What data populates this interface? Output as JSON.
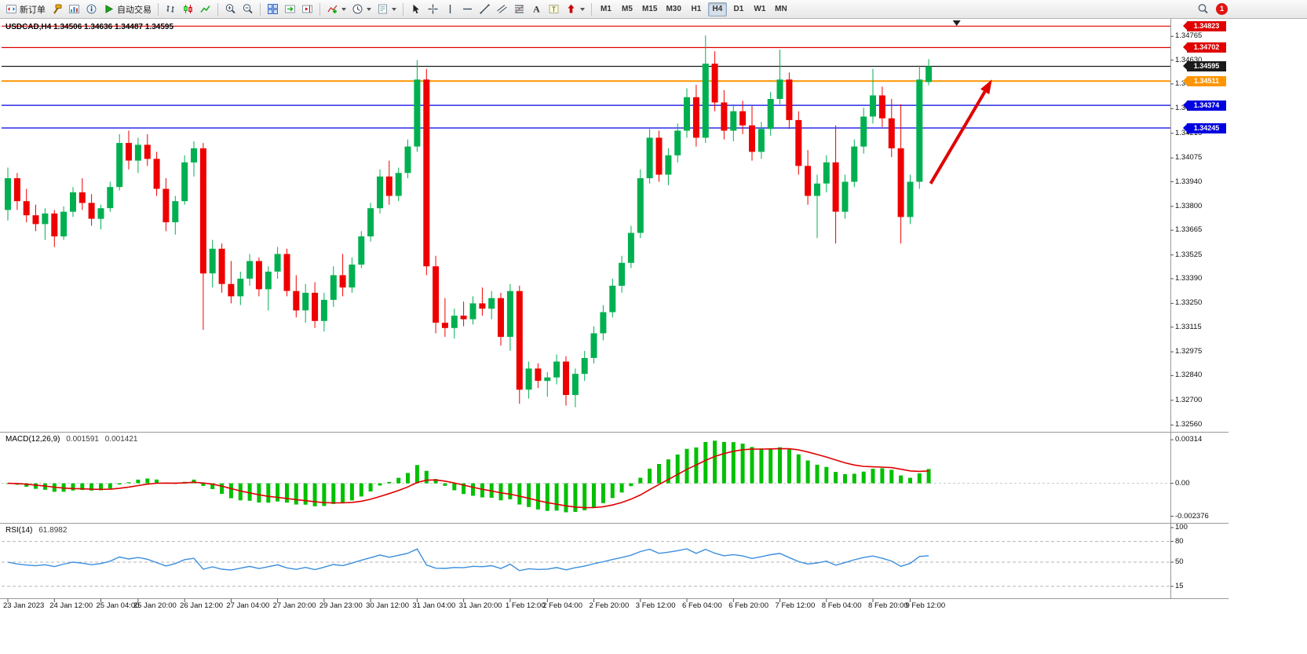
{
  "app": {
    "toolbar": {
      "groups": [
        {
          "items": [
            {
              "name": "new-order",
              "icon": "new-order",
              "label": "新订单"
            },
            {
              "name": "mql-editor",
              "icon": "hammer"
            },
            {
              "name": "market-watch",
              "icon": "market-watch"
            },
            {
              "name": "data-window",
              "icon": "info"
            },
            {
              "name": "auto-trading",
              "icon": "play",
              "label": "自动交易"
            }
          ]
        },
        {
          "items": [
            {
              "name": "bar-chart-mode",
              "icon": "bars"
            },
            {
              "name": "candlestick-mode",
              "icon": "candles"
            },
            {
              "name": "line-chart-mode",
              "icon": "line"
            }
          ]
        },
        {
          "items": [
            {
              "name": "zoom-in",
              "icon": "zoom-in"
            },
            {
              "name": "zoom-out",
              "icon": "zoom-out"
            }
          ]
        },
        {
          "items": [
            {
              "name": "tile-windows",
              "icon": "tiles"
            },
            {
              "name": "auto-scroll",
              "icon": "autoscroll"
            },
            {
              "name": "chart-shift",
              "icon": "shift"
            }
          ]
        },
        {
          "items": [
            {
              "name": "indicators-list",
              "icon": "indicator",
              "caret": true
            },
            {
              "name": "periods",
              "icon": "clock",
              "caret": true
            },
            {
              "name": "templates",
              "icon": "template",
              "caret": true
            }
          ]
        },
        {
          "items": [
            {
              "name": "cursor",
              "icon": "cursor"
            },
            {
              "name": "crosshair",
              "icon": "crosshair"
            },
            {
              "name": "vertical-line-tool",
              "icon": "vline"
            },
            {
              "name": "horizontal-line-tool",
              "icon": "hline"
            },
            {
              "name": "trendline-tool",
              "icon": "tline"
            },
            {
              "name": "equidistant-channel-tool",
              "icon": "channel"
            },
            {
              "name": "fibonacci-tool",
              "icon": "fibo"
            },
            {
              "name": "text-tool",
              "icon": "textA"
            },
            {
              "name": "text-label-tool",
              "icon": "textT"
            },
            {
              "name": "arrows-tool",
              "icon": "arrow",
              "caret": true
            }
          ]
        }
      ],
      "timeframes": {
        "items": [
          "M1",
          "M5",
          "M15",
          "M30",
          "H1",
          "H4",
          "D1",
          "W1",
          "MN"
        ],
        "active": "H4"
      },
      "notification_badge": "1"
    }
  },
  "chart": {
    "title": "USDCAD,H4 1.34506 1.34636 1.34487 1.34595",
    "bull_color": "#00B050",
    "bear_color": "#EE0000",
    "levels": [
      {
        "price": 1.34823,
        "label": "1.34823",
        "color": "#E00000"
      },
      {
        "price": 1.34702,
        "label": "1.34702",
        "color": "#E00000"
      },
      {
        "price": 1.34595,
        "label": "1.34595",
        "color": "#1a1a1a"
      },
      {
        "price": 1.34511,
        "label": "1.34511",
        "color": "#FF9500",
        "width": 2
      },
      {
        "price": 1.34374,
        "label": "1.34374",
        "color": "#0000E0"
      },
      {
        "price": 1.34245,
        "label": "1.34245",
        "color": "#0000E0"
      }
    ],
    "y_ticks": [
      "1.34765",
      "1.34630",
      "1.34495",
      "1.34355",
      "1.34215",
      "1.34075",
      "1.33940",
      "1.33800",
      "1.33665",
      "1.33525",
      "1.33390",
      "1.33250",
      "1.33115",
      "1.32975",
      "1.32840",
      "1.32700",
      "1.32560"
    ],
    "time_axis": [
      {
        "label": "23 Jan 2023",
        "i": 0
      },
      {
        "label": "24 Jan 12:00",
        "i": 5
      },
      {
        "label": "25 Jan 04:00",
        "i": 10
      },
      {
        "label": "25 Jan 20:00",
        "i": 14
      },
      {
        "label": "26 Jan 12:00",
        "i": 19
      },
      {
        "label": "27 Jan 04:00",
        "i": 24
      },
      {
        "label": "27 Jan 20:00",
        "i": 29
      },
      {
        "label": "29 Jan 23:00",
        "i": 34
      },
      {
        "label": "30 Jan 12:00",
        "i": 39
      },
      {
        "label": "31 Jan 04:00",
        "i": 44
      },
      {
        "label": "31 Jan 20:00",
        "i": 49
      },
      {
        "label": "1 Feb 12:00",
        "i": 54
      },
      {
        "label": "2 Feb 04:00",
        "i": 58
      },
      {
        "label": "2 Feb 20:00",
        "i": 63
      },
      {
        "label": "3 Feb 12:00",
        "i": 68
      },
      {
        "label": "6 Feb 04:00",
        "i": 73
      },
      {
        "label": "6 Feb 20:00",
        "i": 78
      },
      {
        "label": "7 Feb 12:00",
        "i": 83
      },
      {
        "label": "8 Feb 04:00",
        "i": 88
      },
      {
        "label": "8 Feb 20:00",
        "i": 93
      },
      {
        "label": "9 Feb 12:00",
        "i": 97
      }
    ]
  },
  "indicators": {
    "macd": {
      "label": "MACD(12,26,9)",
      "value_main": "0.001591",
      "value_signal": "0.001421",
      "scale": [
        "0.00314",
        "0.00",
        "-0.002376"
      ],
      "histogram_color": "#00C000",
      "signal_color": "#E00000"
    },
    "rsi": {
      "label": "RSI(14)",
      "value": "61.8982",
      "scale": [
        "100",
        "80",
        "50",
        "15"
      ],
      "levels": [
        80,
        50,
        15
      ],
      "line_color": "#3B8EDE"
    }
  },
  "annotations": {
    "arrow": {
      "color": "#E00000",
      "from": {
        "i": 99.2,
        "price": 1.3393
      },
      "to": {
        "i": 105.8,
        "price": 1.3452
      }
    },
    "shift_marker_i": 102
  },
  "chart_data": {
    "type": "candlestick",
    "symbol": "USDCAD",
    "timeframe": "H4",
    "title": "USDCAD,H4",
    "ohlc_current": {
      "open": "1.34506",
      "high": "1.34636",
      "low": "1.34487",
      "close": "1.34595"
    },
    "y_range": [
      1.3253,
      1.3486
    ],
    "ohlc": [
      [
        1.3378,
        1.3402,
        1.3372,
        1.3396
      ],
      [
        1.3396,
        1.3399,
        1.3378,
        1.3383
      ],
      [
        1.3383,
        1.339,
        1.3371,
        1.3375
      ],
      [
        1.3375,
        1.3381,
        1.3366,
        1.337
      ],
      [
        1.337,
        1.3379,
        1.3361,
        1.3376
      ],
      [
        1.3376,
        1.3378,
        1.3357,
        1.3363
      ],
      [
        1.3363,
        1.338,
        1.3361,
        1.3377
      ],
      [
        1.3377,
        1.3391,
        1.3374,
        1.3388
      ],
      [
        1.3388,
        1.3396,
        1.3378,
        1.3382
      ],
      [
        1.3382,
        1.3387,
        1.3369,
        1.3373
      ],
      [
        1.3373,
        1.3381,
        1.3367,
        1.3379
      ],
      [
        1.3379,
        1.3394,
        1.3377,
        1.3391
      ],
      [
        1.3391,
        1.3421,
        1.3389,
        1.3416
      ],
      [
        1.3416,
        1.3423,
        1.3401,
        1.3406
      ],
      [
        1.3406,
        1.3419,
        1.3399,
        1.3415
      ],
      [
        1.3415,
        1.3421,
        1.3403,
        1.3407
      ],
      [
        1.3407,
        1.3411,
        1.3386,
        1.339
      ],
      [
        1.339,
        1.3396,
        1.3366,
        1.3371
      ],
      [
        1.3371,
        1.3386,
        1.3364,
        1.3383
      ],
      [
        1.3383,
        1.3409,
        1.3381,
        1.3405
      ],
      [
        1.3405,
        1.3417,
        1.3397,
        1.3413
      ],
      [
        1.3413,
        1.3416,
        1.331,
        1.3342
      ],
      [
        1.3342,
        1.3361,
        1.3334,
        1.3356
      ],
      [
        1.3356,
        1.3359,
        1.3331,
        1.3336
      ],
      [
        1.3336,
        1.3349,
        1.3325,
        1.3329
      ],
      [
        1.3329,
        1.3343,
        1.3324,
        1.3339
      ],
      [
        1.3339,
        1.3353,
        1.3335,
        1.3349
      ],
      [
        1.3349,
        1.3351,
        1.3329,
        1.3333
      ],
      [
        1.3333,
        1.3346,
        1.3321,
        1.3343
      ],
      [
        1.3343,
        1.3357,
        1.3339,
        1.3353
      ],
      [
        1.3353,
        1.3356,
        1.3329,
        1.3332
      ],
      [
        1.3332,
        1.3341,
        1.3317,
        1.3321
      ],
      [
        1.3321,
        1.3336,
        1.3314,
        1.3331
      ],
      [
        1.3331,
        1.3337,
        1.3311,
        1.3315
      ],
      [
        1.3315,
        1.3331,
        1.3309,
        1.3327
      ],
      [
        1.3327,
        1.3346,
        1.3323,
        1.3341
      ],
      [
        1.3341,
        1.3353,
        1.3329,
        1.3334
      ],
      [
        1.3334,
        1.3351,
        1.3331,
        1.3347
      ],
      [
        1.3347,
        1.3366,
        1.3345,
        1.3363
      ],
      [
        1.3363,
        1.3382,
        1.336,
        1.3379
      ],
      [
        1.3379,
        1.3401,
        1.3376,
        1.3397
      ],
      [
        1.3397,
        1.3406,
        1.3381,
        1.3386
      ],
      [
        1.3386,
        1.3402,
        1.3383,
        1.3399
      ],
      [
        1.3399,
        1.3418,
        1.3396,
        1.3414
      ],
      [
        1.3414,
        1.3463,
        1.3411,
        1.3452
      ],
      [
        1.3452,
        1.3458,
        1.3341,
        1.3346
      ],
      [
        1.3346,
        1.3352,
        1.3308,
        1.3314
      ],
      [
        1.3314,
        1.3328,
        1.3306,
        1.3311
      ],
      [
        1.3311,
        1.3322,
        1.3305,
        1.3318
      ],
      [
        1.3318,
        1.3326,
        1.3312,
        1.3316
      ],
      [
        1.3316,
        1.3329,
        1.3313,
        1.3325
      ],
      [
        1.3325,
        1.3334,
        1.3318,
        1.3322
      ],
      [
        1.3322,
        1.3332,
        1.3316,
        1.3328
      ],
      [
        1.3328,
        1.3331,
        1.3301,
        1.3306
      ],
      [
        1.3306,
        1.3336,
        1.3298,
        1.3332
      ],
      [
        1.3332,
        1.3335,
        1.3268,
        1.3276
      ],
      [
        1.3276,
        1.3292,
        1.3271,
        1.3288
      ],
      [
        1.3288,
        1.3291,
        1.3277,
        1.3281
      ],
      [
        1.3281,
        1.3286,
        1.3272,
        1.3283
      ],
      [
        1.3283,
        1.3296,
        1.3279,
        1.3292
      ],
      [
        1.3292,
        1.3295,
        1.3267,
        1.3273
      ],
      [
        1.3273,
        1.3288,
        1.3266,
        1.3285
      ],
      [
        1.3285,
        1.3298,
        1.3281,
        1.3294
      ],
      [
        1.3294,
        1.3312,
        1.3291,
        1.3308
      ],
      [
        1.3308,
        1.3324,
        1.3304,
        1.332
      ],
      [
        1.332,
        1.3339,
        1.3317,
        1.3335
      ],
      [
        1.3335,
        1.3352,
        1.3331,
        1.3348
      ],
      [
        1.3348,
        1.3369,
        1.3345,
        1.3365
      ],
      [
        1.3365,
        1.3401,
        1.3362,
        1.3396
      ],
      [
        1.3396,
        1.3424,
        1.3393,
        1.3419
      ],
      [
        1.3419,
        1.3423,
        1.3394,
        1.3398
      ],
      [
        1.3398,
        1.3413,
        1.3392,
        1.3409
      ],
      [
        1.3409,
        1.3427,
        1.3405,
        1.3423
      ],
      [
        1.3423,
        1.3447,
        1.3419,
        1.3442
      ],
      [
        1.3442,
        1.3449,
        1.3414,
        1.3419
      ],
      [
        1.3419,
        1.3477,
        1.3416,
        1.3461
      ],
      [
        1.3461,
        1.3468,
        1.3434,
        1.3439
      ],
      [
        1.3439,
        1.3446,
        1.3418,
        1.3423
      ],
      [
        1.3423,
        1.3438,
        1.3417,
        1.3434
      ],
      [
        1.3434,
        1.344,
        1.3421,
        1.3426
      ],
      [
        1.3426,
        1.3437,
        1.3406,
        1.3411
      ],
      [
        1.3411,
        1.3428,
        1.3407,
        1.3424
      ],
      [
        1.3424,
        1.3445,
        1.342,
        1.3441
      ],
      [
        1.3441,
        1.3469,
        1.3438,
        1.3452
      ],
      [
        1.3452,
        1.3456,
        1.3424,
        1.3429
      ],
      [
        1.3429,
        1.3434,
        1.3398,
        1.3403
      ],
      [
        1.3403,
        1.3412,
        1.3381,
        1.3386
      ],
      [
        1.3386,
        1.3398,
        1.3362,
        1.3393
      ],
      [
        1.3393,
        1.3409,
        1.3388,
        1.3405
      ],
      [
        1.3405,
        1.3426,
        1.3359,
        1.3377
      ],
      [
        1.3377,
        1.3398,
        1.3373,
        1.3394
      ],
      [
        1.3394,
        1.3418,
        1.3391,
        1.3414
      ],
      [
        1.3414,
        1.3436,
        1.341,
        1.3431
      ],
      [
        1.3431,
        1.3458,
        1.3427,
        1.3443
      ],
      [
        1.3443,
        1.3448,
        1.3425,
        1.343
      ],
      [
        1.343,
        1.3441,
        1.3408,
        1.3413
      ],
      [
        1.3413,
        1.3438,
        1.3359,
        1.3374
      ],
      [
        1.3374,
        1.3398,
        1.337,
        1.3394
      ],
      [
        1.3394,
        1.346,
        1.339,
        1.3452
      ],
      [
        1.34506,
        1.34636,
        1.34487,
        1.34595
      ]
    ]
  }
}
